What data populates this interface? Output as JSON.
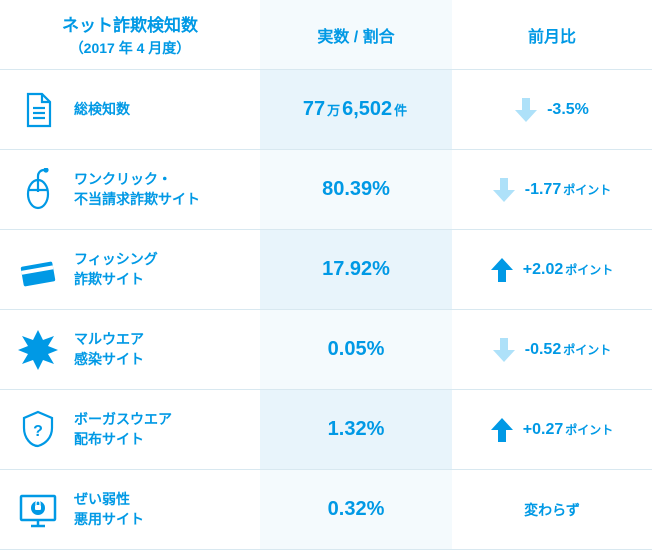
{
  "colors": {
    "primary": "#0099e5",
    "lightBlue": "#f4fafd",
    "altBlue": "#e8f4fb",
    "arrowDown": "#aee1f9",
    "border": "#d8e8f0"
  },
  "header": {
    "title": "ネット詐欺検知数",
    "subtitle": "（2017 年 4 月度）",
    "col2": "実数 / 割合",
    "col3": "前月比"
  },
  "rows": [
    {
      "icon": "document-icon",
      "label": "総検知数",
      "valueHtml": "77<span class='small'>万</span>6,502<span class='small'>件</span>",
      "direction": "down",
      "changeHtml": "-3.5%"
    },
    {
      "icon": "mouse-icon",
      "label": "ワンクリック・\n不当請求詐欺サイト",
      "valueHtml": "80.39%",
      "direction": "down",
      "changeHtml": "-1.77<span class='small'>ポイント</span>"
    },
    {
      "icon": "card-icon",
      "label": "フィッシング\n詐欺サイト",
      "valueHtml": "17.92%",
      "direction": "up",
      "changeHtml": "+2.02<span class='small'>ポイント</span>"
    },
    {
      "icon": "burst-icon",
      "label": "マルウエア\n感染サイト",
      "valueHtml": "0.05%",
      "direction": "down",
      "changeHtml": "-0.52<span class='small'>ポイント</span>"
    },
    {
      "icon": "shield-icon",
      "label": "ボーガスウエア\n配布サイト",
      "valueHtml": "1.32%",
      "direction": "up",
      "changeHtml": "+0.27<span class='small'>ポイント</span>"
    },
    {
      "icon": "monitor-icon",
      "label": "ぜい弱性\n悪用サイト",
      "valueHtml": "0.32%",
      "direction": "none",
      "changeHtml": "変わらず"
    }
  ]
}
